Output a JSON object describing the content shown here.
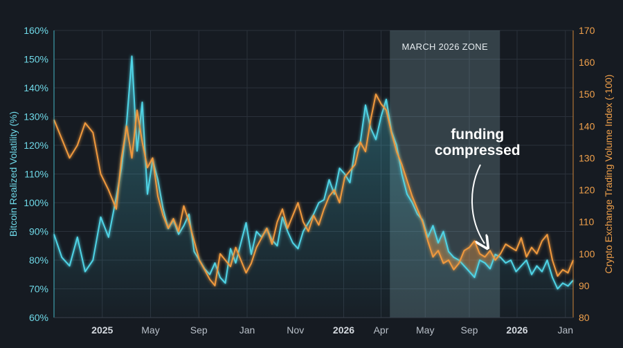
{
  "chart_data": {
    "type": "line",
    "ylabel_left": "Bitcoin Realized Volatility (%)",
    "ylabel_right": "Crypto Exchange Trading Volume Index (·100)",
    "ylim_left": [
      60,
      160
    ],
    "ylim_right": [
      80,
      170
    ],
    "yticks_left": [
      "60%",
      "70%",
      "80%",
      "90%",
      "100%",
      "110%",
      "120%",
      "130%",
      "140%",
      "150%",
      "160%"
    ],
    "yticks_right": [
      "80",
      "90",
      "100",
      "110",
      "120",
      "130",
      "140",
      "150",
      "160",
      "170"
    ],
    "xlim": [
      0,
      100
    ],
    "xticks": [
      {
        "x": 9.3,
        "label": "2025",
        "bold": true
      },
      {
        "x": 18.6,
        "label": "May",
        "bold": false
      },
      {
        "x": 27.9,
        "label": "Sep",
        "bold": false
      },
      {
        "x": 37.2,
        "label": "Jan",
        "bold": false
      },
      {
        "x": 46.5,
        "label": "Nov",
        "bold": false
      },
      {
        "x": 55.8,
        "label": "2026",
        "bold": true
      },
      {
        "x": 63.0,
        "label": "Apr",
        "bold": false
      },
      {
        "x": 71.5,
        "label": "May",
        "bold": false
      },
      {
        "x": 80.0,
        "label": "Sep",
        "bold": false
      },
      {
        "x": 89.2,
        "label": "2026",
        "bold": true
      },
      {
        "x": 98.5,
        "label": "Jan",
        "bold": false
      }
    ],
    "zone": {
      "x_start": 64.7,
      "x_end": 85.9,
      "label": "MARCH 2026 ZONE"
    },
    "annotation": {
      "line1": "funding",
      "line2": "compressed",
      "x": 80.5,
      "y_left": 120
    },
    "series": [
      {
        "axis": "left",
        "color": "#4fd4e6",
        "x": [
          0,
          1.5,
          3,
          4.5,
          6,
          7.5,
          9,
          10.5,
          12,
          13,
          14,
          15,
          16,
          17,
          18,
          19,
          20,
          21,
          22,
          23,
          24,
          25,
          26,
          27,
          28,
          29,
          30,
          31,
          32,
          33,
          34,
          35,
          36,
          37,
          38,
          39,
          40,
          41,
          42,
          43,
          44,
          45,
          46,
          47,
          48,
          49,
          50,
          51,
          52,
          53,
          54,
          55,
          56,
          57,
          58,
          59,
          60,
          61,
          62,
          63,
          64,
          65,
          66,
          67,
          68,
          69,
          70,
          71,
          72,
          73,
          74,
          75,
          76,
          77,
          78,
          79,
          80,
          81,
          82,
          83,
          84,
          85,
          86,
          87,
          88,
          89,
          90,
          91,
          92,
          93,
          94,
          95,
          96,
          97,
          98,
          99,
          100
        ],
        "values": [
          89,
          81,
          78,
          88,
          76,
          80,
          95,
          88,
          102,
          112,
          128,
          151,
          118,
          135,
          103,
          115,
          108,
          98,
          91,
          94,
          89,
          92,
          96,
          83,
          80,
          77,
          75,
          79,
          74,
          72,
          84,
          79,
          86,
          93,
          82,
          90,
          88,
          91,
          87,
          85,
          95,
          90,
          86,
          84,
          90,
          93,
          96,
          100,
          101,
          108,
          103,
          112,
          110,
          107,
          119,
          121,
          134,
          126,
          122,
          130,
          136,
          125,
          120,
          110,
          103,
          100,
          96,
          94,
          88,
          92,
          86,
          90,
          83,
          81,
          80,
          78,
          76,
          74,
          80,
          79,
          77,
          82,
          81,
          79,
          80,
          76,
          78,
          80,
          75,
          78,
          76,
          80,
          74,
          70,
          72,
          71,
          73
        ]
      },
      {
        "axis": "right",
        "color": "#f0993e",
        "x": [
          0,
          1.5,
          3,
          4.5,
          6,
          7.5,
          9,
          10.5,
          12,
          13,
          14,
          15,
          16,
          17,
          18,
          19,
          20,
          21,
          22,
          23,
          24,
          25,
          26,
          27,
          28,
          29,
          30,
          31,
          32,
          33,
          34,
          35,
          36,
          37,
          38,
          39,
          40,
          41,
          42,
          43,
          44,
          45,
          46,
          47,
          48,
          49,
          50,
          51,
          52,
          53,
          54,
          55,
          56,
          57,
          58,
          59,
          60,
          61,
          62,
          63,
          64,
          65,
          66,
          67,
          68,
          69,
          70,
          71,
          72,
          73,
          74,
          75,
          76,
          77,
          78,
          79,
          80,
          81,
          82,
          83,
          84,
          85,
          86,
          87,
          88,
          89,
          90,
          91,
          92,
          93,
          94,
          95,
          96,
          97,
          98,
          99,
          100
        ],
        "values": [
          142,
          136,
          130,
          134,
          141,
          138,
          125,
          120,
          114,
          130,
          140,
          130,
          145,
          135,
          127,
          130,
          118,
          112,
          108,
          111,
          107,
          115,
          110,
          104,
          98,
          95,
          92,
          90,
          100,
          98,
          96,
          102,
          98,
          94,
          97,
          102,
          105,
          108,
          103,
          110,
          114,
          108,
          112,
          116,
          110,
          107,
          112,
          109,
          114,
          118,
          120,
          116,
          124,
          126,
          128,
          135,
          132,
          142,
          150,
          147,
          145,
          138,
          132,
          128,
          123,
          118,
          114,
          110,
          104,
          99,
          101,
          97,
          98,
          95,
          97,
          101,
          102,
          104,
          100,
          99,
          101,
          98,
          100,
          103,
          102,
          101,
          105,
          99,
          102,
          100,
          104,
          106,
          98,
          93,
          95,
          94,
          98
        ]
      }
    ]
  }
}
